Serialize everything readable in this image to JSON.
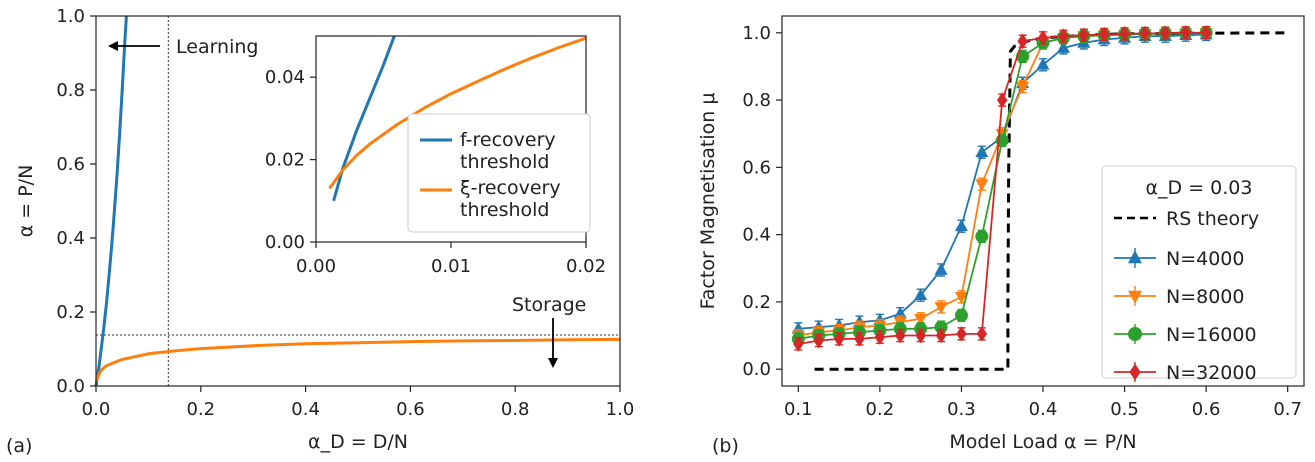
{
  "chart_data": [
    {
      "panel_label": "(a)",
      "type": "line",
      "xlabel": "α_D = D/N",
      "ylabel": "α = P/N",
      "xlim": [
        0,
        1
      ],
      "ylim": [
        0,
        1
      ],
      "xticks": [
        "0.0",
        "0.2",
        "0.4",
        "0.6",
        "0.8",
        "1.0"
      ],
      "yticks": [
        "0.0",
        "0.2",
        "0.4",
        "0.6",
        "0.8",
        "1.0"
      ],
      "annotations": {
        "learning": "Learning",
        "storage": "Storage"
      },
      "reference_lines": {
        "vertical_x": 0.138,
        "horizontal_y": 0.138
      },
      "series": [
        {
          "name": "f-recovery threshold",
          "color": "#1f77b4",
          "x": [
            0.0,
            0.005,
            0.01,
            0.015,
            0.02,
            0.025,
            0.03,
            0.035,
            0.04,
            0.045,
            0.05,
            0.055,
            0.058
          ],
          "y": [
            0.0,
            0.045,
            0.1,
            0.16,
            0.225,
            0.3,
            0.38,
            0.47,
            0.57,
            0.68,
            0.8,
            0.93,
            1.0
          ]
        },
        {
          "name": "ξ-recovery threshold",
          "color": "#ff7f0e",
          "x": [
            0.001,
            0.005,
            0.01,
            0.02,
            0.05,
            0.1,
            0.15,
            0.2,
            0.3,
            0.4,
            0.5,
            0.6,
            0.7,
            0.8,
            0.9,
            1.0
          ],
          "y": [
            0.013,
            0.03,
            0.043,
            0.055,
            0.072,
            0.087,
            0.095,
            0.101,
            0.109,
            0.114,
            0.117,
            0.12,
            0.122,
            0.123,
            0.125,
            0.126
          ]
        }
      ],
      "inset": {
        "xlim": [
          0,
          0.02
        ],
        "ylim": [
          0,
          0.05
        ],
        "xticks": [
          "0.00",
          "0.01",
          "0.02"
        ],
        "yticks": [
          "0.00",
          "0.02",
          "0.04"
        ],
        "legend": [
          "f-recovery\nthreshold",
          "ξ-recovery\nthreshold"
        ],
        "series": [
          {
            "name": "f-recovery threshold",
            "color": "#1f77b4",
            "x": [
              0.0013,
              0.002,
              0.003,
              0.004,
              0.005,
              0.0058
            ],
            "y": [
              0.01,
              0.018,
              0.027,
              0.035,
              0.043,
              0.05
            ]
          },
          {
            "name": "ξ-recovery threshold",
            "color": "#ff7f0e",
            "x": [
              0.001,
              0.002,
              0.003,
              0.004,
              0.006,
              0.008,
              0.01,
              0.012,
              0.014,
              0.016,
              0.018,
              0.02
            ],
            "y": [
              0.013,
              0.0175,
              0.021,
              0.0238,
              0.0285,
              0.0325,
              0.036,
              0.039,
              0.042,
              0.0447,
              0.0472,
              0.0495
            ]
          }
        ]
      }
    },
    {
      "panel_label": "(b)",
      "type": "line",
      "xlabel": "Model Load α = P/N",
      "ylabel": "Factor Magnetisation μ",
      "xlim": [
        0.08,
        0.72
      ],
      "ylim": [
        -0.05,
        1.05
      ],
      "xticks": [
        "0.1",
        "0.2",
        "0.3",
        "0.4",
        "0.5",
        "0.6",
        "0.7"
      ],
      "yticks": [
        "0.0",
        "0.2",
        "0.4",
        "0.6",
        "0.8",
        "1.0"
      ],
      "legend_title": "α_D = 0.03",
      "legend_placement": "lower-right",
      "theory": {
        "name": "RS theory",
        "color": "#000000",
        "x": [
          0.12,
          0.357,
          0.357,
          0.358,
          0.36,
          0.365,
          0.38,
          0.4,
          0.45,
          0.5,
          0.6,
          0.7
        ],
        "y": [
          0.0,
          0.0,
          0.2,
          0.6,
          0.945,
          0.96,
          0.975,
          0.985,
          0.993,
          0.997,
          0.999,
          1.0
        ]
      },
      "series": [
        {
          "name": "N=4000",
          "color": "#1f77b4",
          "marker": "triangle-up",
          "x": [
            0.1,
            0.125,
            0.15,
            0.175,
            0.2,
            0.225,
            0.25,
            0.275,
            0.3,
            0.325,
            0.35,
            0.375,
            0.4,
            0.425,
            0.45,
            0.475,
            0.5,
            0.525,
            0.55,
            0.575,
            0.6
          ],
          "y": [
            0.12,
            0.125,
            0.13,
            0.14,
            0.145,
            0.165,
            0.22,
            0.295,
            0.425,
            0.645,
            0.69,
            0.85,
            0.905,
            0.955,
            0.97,
            0.98,
            0.985,
            0.99,
            0.99,
            0.993,
            0.995
          ]
        },
        {
          "name": "N=8000",
          "color": "#ff7f0e",
          "marker": "triangle-down",
          "x": [
            0.1,
            0.125,
            0.15,
            0.175,
            0.2,
            0.225,
            0.25,
            0.275,
            0.3,
            0.325,
            0.35,
            0.375,
            0.4,
            0.425,
            0.45,
            0.475,
            0.5,
            0.525,
            0.55,
            0.575,
            0.6
          ],
          "y": [
            0.1,
            0.11,
            0.115,
            0.125,
            0.13,
            0.14,
            0.15,
            0.185,
            0.215,
            0.55,
            0.7,
            0.84,
            0.97,
            0.985,
            0.99,
            0.993,
            0.995,
            0.997,
            0.998,
            0.999,
            1.0
          ]
        },
        {
          "name": "N=16000",
          "color": "#2ca02c",
          "marker": "circle",
          "x": [
            0.1,
            0.125,
            0.15,
            0.175,
            0.2,
            0.225,
            0.25,
            0.275,
            0.3,
            0.325,
            0.35,
            0.375,
            0.4,
            0.425,
            0.45,
            0.475,
            0.5,
            0.525,
            0.55,
            0.575,
            0.6
          ],
          "y": [
            0.09,
            0.1,
            0.105,
            0.11,
            0.115,
            0.12,
            0.12,
            0.125,
            0.16,
            0.395,
            0.68,
            0.93,
            0.97,
            0.985,
            0.99,
            0.993,
            0.995,
            0.997,
            0.998,
            0.999,
            1.0
          ]
        },
        {
          "name": "N=32000",
          "color": "#d62728",
          "marker": "diamond",
          "x": [
            0.1,
            0.125,
            0.15,
            0.175,
            0.2,
            0.225,
            0.25,
            0.275,
            0.3,
            0.325,
            0.35,
            0.375,
            0.4,
            0.425,
            0.45,
            0.475,
            0.5,
            0.525,
            0.55,
            0.575,
            0.6
          ],
          "y": [
            0.075,
            0.085,
            0.09,
            0.09,
            0.095,
            0.1,
            0.1,
            0.1,
            0.105,
            0.105,
            0.8,
            0.975,
            0.985,
            0.99,
            0.993,
            0.995,
            0.997,
            0.998,
            0.999,
            1.0,
            1.0
          ]
        }
      ]
    }
  ]
}
